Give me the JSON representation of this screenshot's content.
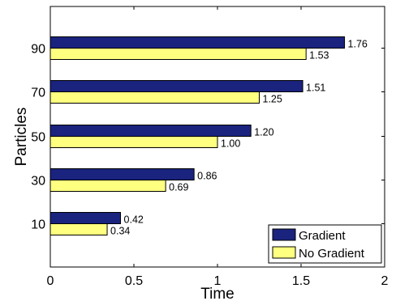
{
  "chart_data": {
    "type": "bar",
    "orientation": "horizontal",
    "categories": [
      "10",
      "30",
      "50",
      "70",
      "90"
    ],
    "series": [
      {
        "name": "Gradient",
        "color": "#1a237e",
        "values": [
          0.42,
          0.86,
          1.2,
          1.51,
          1.76
        ],
        "labels": [
          "0.42",
          "0.86",
          "1.20",
          "1.51",
          "1.76"
        ]
      },
      {
        "name": "No Gradient",
        "color": "#ffff80",
        "values": [
          0.34,
          0.69,
          1.0,
          1.25,
          1.53
        ],
        "labels": [
          "0.34",
          "0.69",
          "1.00",
          "1.25",
          "1.53"
        ]
      }
    ],
    "xlabel": "Time",
    "ylabel": "Particles",
    "xlim": [
      0,
      2
    ],
    "xticks": [
      0,
      0.5,
      1,
      1.5,
      2
    ],
    "xtick_labels": [
      "0",
      "0.5",
      "1",
      "1.5",
      "2"
    ],
    "grid": false,
    "legend_position": "bottom-right"
  }
}
